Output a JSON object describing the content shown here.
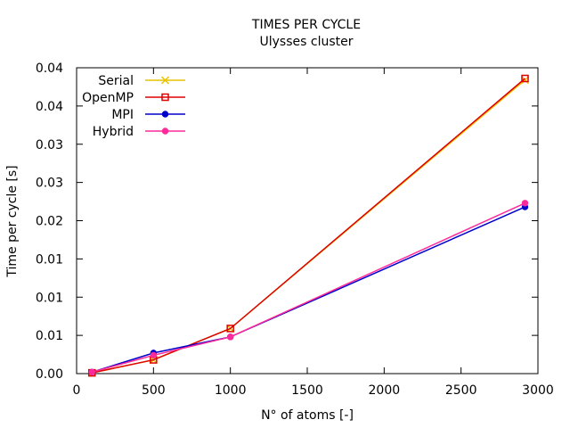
{
  "chart_data": {
    "type": "line",
    "title": "TIMES PER CYCLE",
    "subtitle": "Ulysses cluster",
    "xlabel": "N° of atoms [-]",
    "ylabel": "Time per cycle [s]",
    "xlim": [
      0,
      3000
    ],
    "ylim": [
      0,
      0.04
    ],
    "grid": false,
    "legend_position": "top-left",
    "x_ticks": [
      {
        "value": 0,
        "label": "0"
      },
      {
        "value": 500,
        "label": "500"
      },
      {
        "value": 1000,
        "label": "1000"
      },
      {
        "value": 1500,
        "label": "1500"
      },
      {
        "value": 2000,
        "label": "2000"
      },
      {
        "value": 2500,
        "label": "2500"
      },
      {
        "value": 3000,
        "label": "3000"
      }
    ],
    "y_ticks": [
      {
        "value": 0,
        "label": "0.00"
      },
      {
        "value": 0.005,
        "label": "0.01"
      },
      {
        "value": 0.01,
        "label": "0.01"
      },
      {
        "value": 0.015,
        "label": "0.01"
      },
      {
        "value": 0.02,
        "label": "0.02"
      },
      {
        "value": 0.025,
        "label": "0.03"
      },
      {
        "value": 0.03,
        "label": "0.03"
      },
      {
        "value": 0.035,
        "label": "0.04"
      },
      {
        "value": 0.04,
        "label": "0.04"
      }
    ],
    "series": [
      {
        "name": "Serial",
        "color": "#e6c400",
        "marker": "x",
        "x": [
          100,
          500,
          1000,
          2916
        ],
        "y": [
          0.0001,
          0.0018,
          0.0059,
          0.0384
        ]
      },
      {
        "name": "OpenMP",
        "color": "#dd0000",
        "marker": "square",
        "x": [
          100,
          500,
          1000,
          2916
        ],
        "y": [
          0.0001,
          0.0018,
          0.0059,
          0.0386
        ]
      },
      {
        "name": "MPI",
        "color": "#0000cc",
        "marker": "filled-circle",
        "x": [
          100,
          500,
          1000,
          2916
        ],
        "y": [
          0.0002,
          0.0027,
          0.0048,
          0.0218
        ]
      },
      {
        "name": "Hybrid",
        "color": "#ff2a9a",
        "marker": "filled-circle",
        "x": [
          100,
          500,
          1000,
          2916
        ],
        "y": [
          0.0002,
          0.0024,
          0.0048,
          0.0223
        ]
      }
    ]
  }
}
